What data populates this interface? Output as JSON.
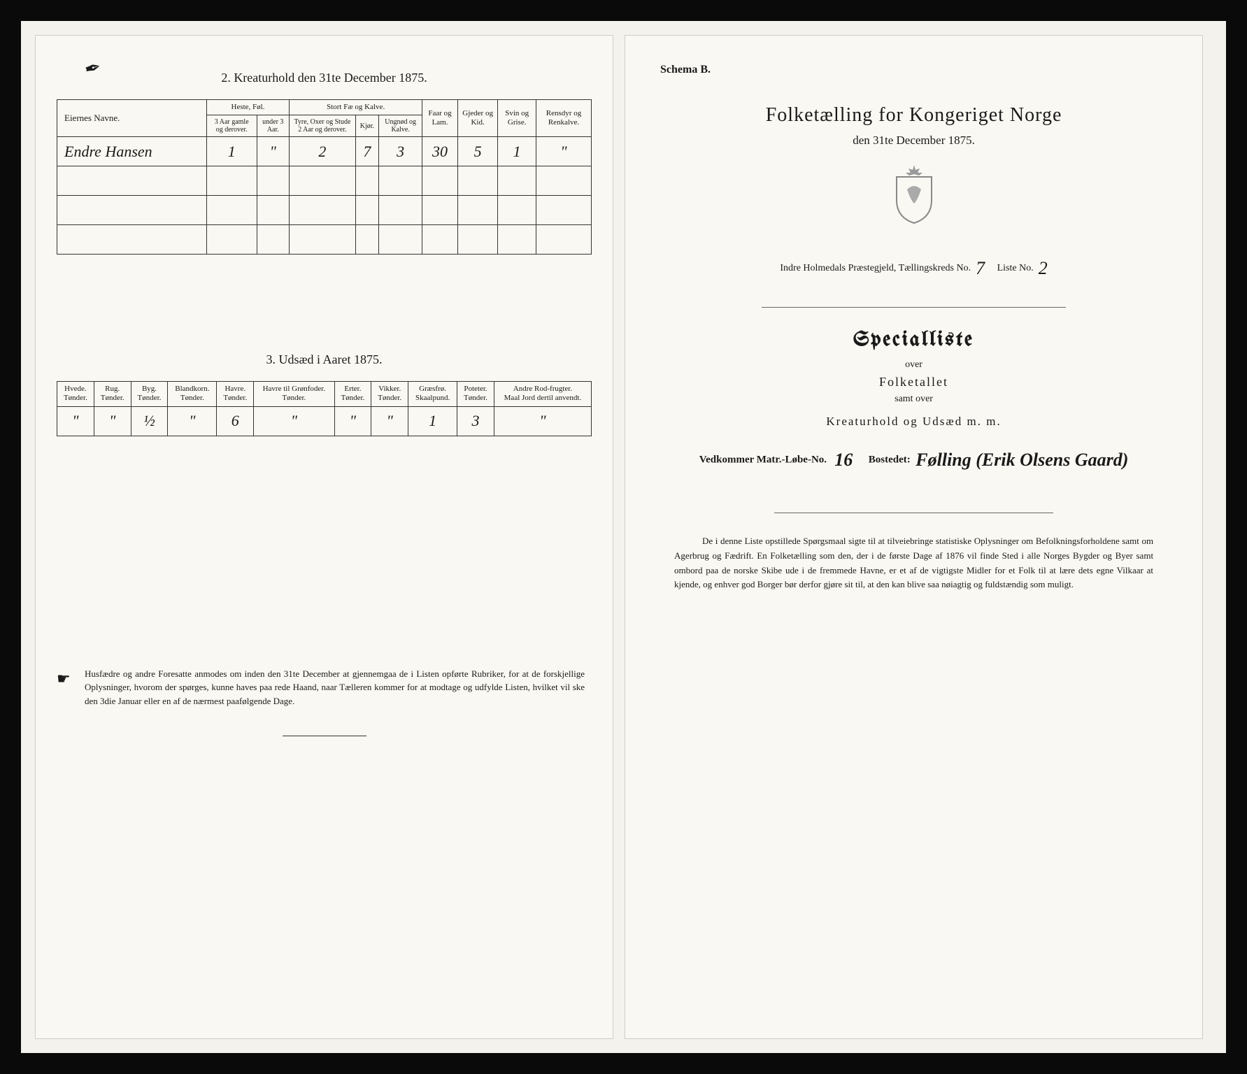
{
  "leftPage": {
    "cornerMark": "✒",
    "section2": {
      "title": "2.  Kreaturhold den 31te December 1875.",
      "header": {
        "owner": "Eiernes Navne.",
        "grp1": "Heste, Føl.",
        "grp1a": "3 Aar gamle og derover.",
        "grp1b": "under 3 Aar.",
        "grp2": "Stort Fæ og Kalve.",
        "grp2a": "Tyre, Oxer og Stude 2 Aar og derover.",
        "grp2b": "Kjør.",
        "grp2c": "Ungnød og Kalve.",
        "col3": "Faar og Lam.",
        "col4": "Gjeder og Kid.",
        "col5": "Svin og Grise.",
        "col6": "Rensdyr og Renkalve."
      },
      "row": {
        "name": "Endre Hansen",
        "v1": "1",
        "v2": "\"",
        "v3": "2",
        "v4": "7",
        "v5": "3",
        "v6": "30",
        "v7": "5",
        "v8": "1",
        "v9": "\""
      }
    },
    "section3": {
      "title": "3.  Udsæd i Aaret 1875.",
      "headers": [
        "Hvede.\nTønder.",
        "Rug.\nTønder.",
        "Byg.\nTønder.",
        "Blandkorn.\nTønder.",
        "Havre.\nTønder.",
        "Havre til Grønfoder.\nTønder.",
        "Erter.\nTønder.",
        "Vikker.\nTønder.",
        "Græsfrø.\nSkaalpund.",
        "Poteter.\nTønder.",
        "Andre Rod-frugter.\nMaal Jord dertil anvendt."
      ],
      "row": [
        "\"",
        "\"",
        "½",
        "\"",
        "6",
        "\"",
        "\"",
        "\"",
        "1",
        "3",
        "\""
      ]
    },
    "footnote": "Husfædre og andre Foresatte anmodes om inden den 31te December at gjennemgaa de i Listen opførte Rubriker, for at de forskjellige Oplysninger, hvorom der spørges, kunne haves paa rede Haand, naar Tælleren kommer for at modtage og udfylde Listen, hvilket vil ske den 3die Januar eller en af de nærmest paafølgende Dage."
  },
  "rightPage": {
    "schema": "Schema B.",
    "title": "Folketælling  for  Kongeriget Norge",
    "date": "den 31te December 1875.",
    "formLine": {
      "prefix": "Indre Holmedals  Præstegjeld,  Tællingskreds No.",
      "kredsNo": "7",
      "listePrefix": "Liste No.",
      "listeNo": "2"
    },
    "specialliste": "Specialliste",
    "over1": "over",
    "folketallet": "Folketallet",
    "over2": "samt over",
    "kreat": "Kreaturhold  og  Udsæd  m. m.",
    "vedLine": {
      "label1": "Vedkommer Matr.-Løbe-No.",
      "lobeNo": "16",
      "label2": "Bostedet:",
      "bosted": "Følling (Erik Olsens Gaard)"
    },
    "para": "De i denne Liste opstillede Spørgsmaal sigte til at tilveiebringe statistiske Oplysninger om Befolkningsforholdene samt om Agerbrug og Fædrift.  En Folketælling som den, der i de første Dage af 1876 vil finde Sted i alle Norges Bygder og Byer samt ombord paa de norske Skibe ude i de fremmede Havne, er et af de vigtigste Midler for et Folk til at lære dets egne Vilkaar at kjende, og enhver god Borger bør derfor gjøre sit til, at den kan blive saa nøiagtig og fuldstændig som muligt."
  }
}
